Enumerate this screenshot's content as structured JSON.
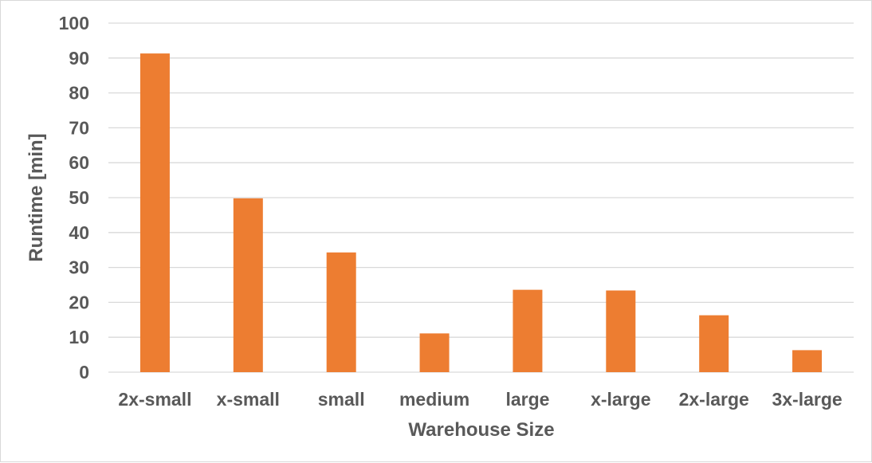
{
  "chart_data": {
    "type": "bar",
    "categories": [
      "2x-small",
      "x-small",
      "small",
      "medium",
      "large",
      "x-large",
      "2x-large",
      "3x-large"
    ],
    "values": [
      91.3,
      49.8,
      34.3,
      11.1,
      23.6,
      23.4,
      16.3,
      6.3
    ],
    "title": "",
    "xlabel": "Warehouse Size",
    "ylabel": "Runtime [min]",
    "ylim": [
      0,
      100
    ],
    "yticks": [
      0,
      10,
      20,
      30,
      40,
      50,
      60,
      70,
      80,
      90,
      100
    ],
    "grid": true,
    "legend": "none",
    "bar_color": "#ED7D31",
    "grid_color": "#D9D9D9",
    "text_color": "#595959"
  }
}
